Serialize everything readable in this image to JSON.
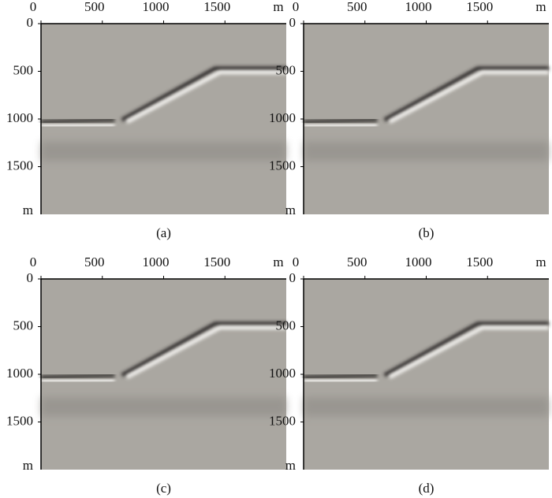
{
  "panels": [
    {
      "caption": "(a)",
      "x_unit": "m",
      "y_unit": "m",
      "xlim": [
        0,
        2000
      ],
      "ylim": [
        0,
        2000
      ],
      "xticks": [
        0,
        500,
        1000,
        1500
      ],
      "yticks": [
        0,
        500,
        1000,
        1500
      ]
    },
    {
      "caption": "(b)",
      "x_unit": "m",
      "y_unit": "m",
      "xlim": [
        0,
        2000
      ],
      "ylim": [
        0,
        2000
      ],
      "xticks": [
        0,
        500,
        1000,
        1500
      ],
      "yticks": [
        0,
        500,
        1000,
        1500
      ]
    },
    {
      "caption": "(c)",
      "x_unit": "m",
      "y_unit": "m",
      "xlim": [
        0,
        2000
      ],
      "ylim": [
        0,
        2000
      ],
      "xticks": [
        0,
        500,
        1000,
        1500
      ],
      "yticks": [
        0,
        500,
        1000,
        1500
      ]
    },
    {
      "caption": "(d)",
      "x_unit": "m",
      "y_unit": "m",
      "xlim": [
        0,
        2000
      ],
      "ylim": [
        0,
        2000
      ],
      "xticks": [
        0,
        500,
        1000,
        1500
      ],
      "yticks": [
        0,
        500,
        1000,
        1500
      ]
    }
  ]
}
